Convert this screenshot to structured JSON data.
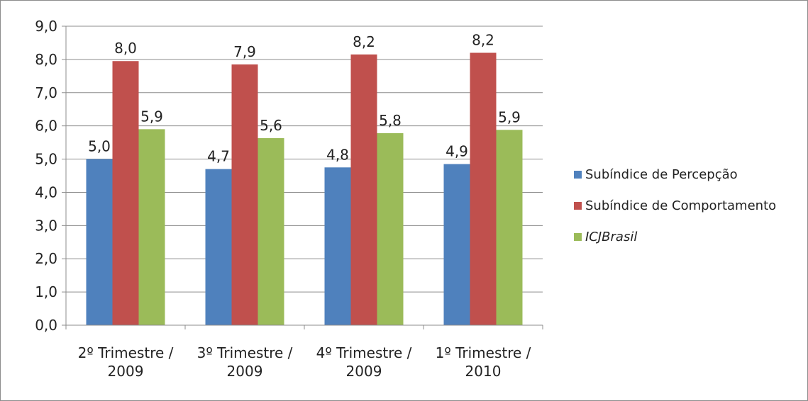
{
  "chart_data": {
    "type": "bar",
    "title": "",
    "xlabel": "",
    "ylabel": "",
    "ylim": [
      0,
      9
    ],
    "ytick_step": 1,
    "ytick_labels": [
      "0,0",
      "1,0",
      "2,0",
      "3,0",
      "4,0",
      "5,0",
      "6,0",
      "7,0",
      "8,0",
      "9,0"
    ],
    "grid": "horizontal",
    "legend_position": "right",
    "categories": [
      [
        "2º Trimestre /",
        "2009"
      ],
      [
        "3º Trimestre /",
        "2009"
      ],
      [
        "4º Trimestre /",
        "2009"
      ],
      [
        "1º Trimestre /",
        "2010"
      ]
    ],
    "series": [
      {
        "name": "Subíndice de Percepção",
        "color": "#4f81bd",
        "italic": false,
        "values": [
          5.0,
          4.7,
          4.75,
          4.85
        ],
        "labels": [
          "5,0",
          "4,7",
          "4,8",
          "4,9"
        ]
      },
      {
        "name": "Subíndice de Comportamento",
        "color": "#c0504d",
        "italic": false,
        "values": [
          7.95,
          7.85,
          8.15,
          8.2
        ],
        "labels": [
          "8,0",
          "7,9",
          "8,2",
          "8,2"
        ]
      },
      {
        "name": "ICJBrasil",
        "color": "#9bbb59",
        "italic": true,
        "values": [
          5.9,
          5.63,
          5.78,
          5.88
        ],
        "labels": [
          "5,9",
          "5,6",
          "5,8",
          "5,9"
        ]
      }
    ]
  }
}
